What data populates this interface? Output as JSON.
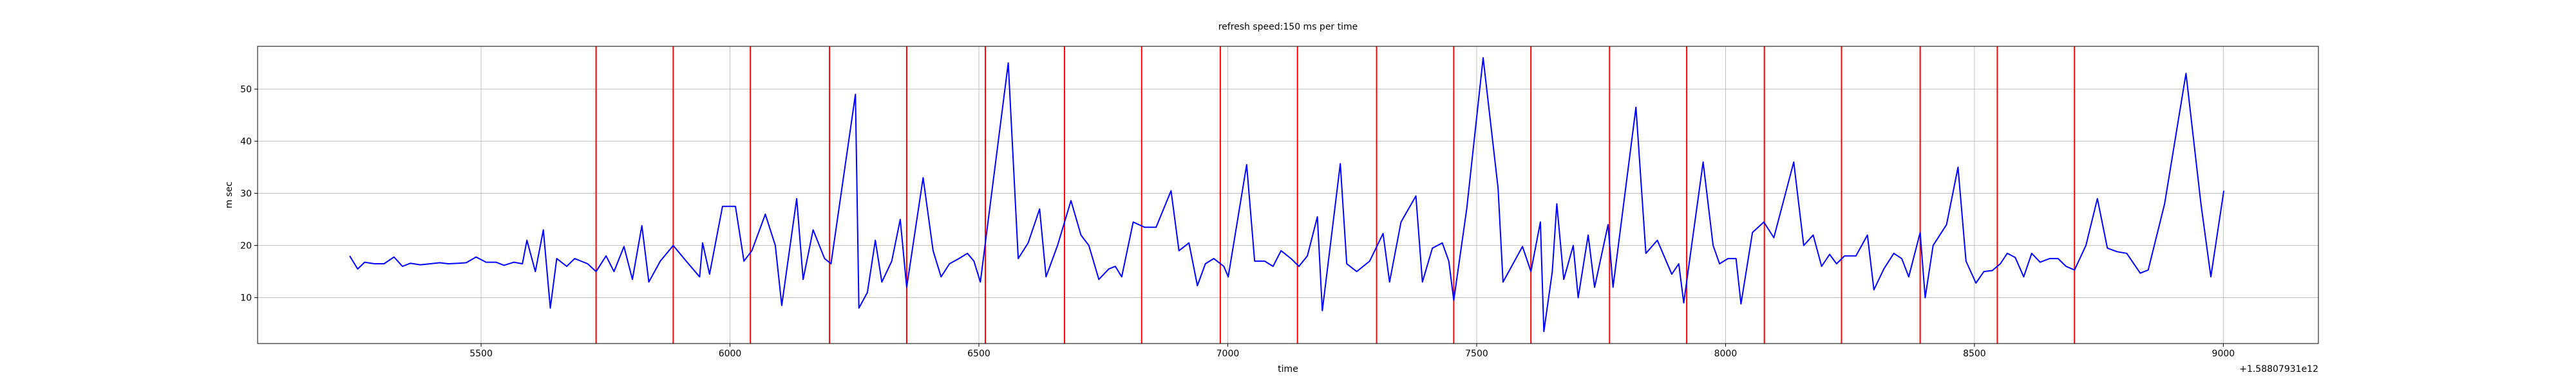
{
  "chart_data": {
    "type": "line",
    "title": "refresh speed:150 ms per time",
    "x_label": "time",
    "y_label": "m sec",
    "x_offset_label": "+1.58807931e12",
    "x": [
      5236,
      5252,
      5266,
      5286,
      5305,
      5325,
      5342,
      5358,
      5378,
      5398,
      5417,
      5434,
      5454,
      5470,
      5490,
      5510,
      5530,
      5546,
      5566,
      5583,
      5592,
      5609,
      5625,
      5639,
      5652,
      5672,
      5688,
      5714,
      5731,
      5751,
      5767,
      5787,
      5804,
      5823,
      5837,
      5860,
      5886,
      5912,
      5939,
      5945,
      5959,
      5985,
      6011,
      6028,
      6044,
      6071,
      6091,
      6104,
      6134,
      6147,
      6167,
      6190,
      6203,
      6252,
      6259,
      6276,
      6292,
      6305,
      6325,
      6342,
      6355,
      6388,
      6408,
      6424,
      6441,
      6460,
      6477,
      6490,
      6503,
      6559,
      6579,
      6599,
      6622,
      6635,
      6658,
      6685,
      6705,
      6721,
      6741,
      6761,
      6774,
      6787,
      6810,
      6833,
      6856,
      6886,
      6902,
      6922,
      6939,
      6955,
      6972,
      6992,
      7001,
      7038,
      7054,
      7074,
      7091,
      7107,
      7127,
      7143,
      7160,
      7180,
      7190,
      7206,
      7226,
      7239,
      7259,
      7285,
      7312,
      7325,
      7348,
      7378,
      7391,
      7411,
      7431,
      7444,
      7454,
      7480,
      7513,
      7543,
      7553,
      7576,
      7592,
      7609,
      7628,
      7635,
      7652,
      7661,
      7675,
      7694,
      7704,
      7724,
      7737,
      7764,
      7774,
      7820,
      7840,
      7863,
      7892,
      7906,
      7916,
      7955,
      7975,
      7988,
      8005,
      8021,
      8031,
      8054,
      8077,
      8097,
      8137,
      8157,
      8176,
      8193,
      8209,
      8223,
      8239,
      8262,
      8285,
      8298,
      8318,
      8338,
      8354,
      8368,
      8391,
      8401,
      8417,
      8444,
      8467,
      8483,
      8503,
      8519,
      8536,
      8552,
      8566,
      8582,
      8599,
      8615,
      8632,
      8651,
      8668,
      8684,
      8701,
      8724,
      8747,
      8767,
      8787,
      8806,
      8833,
      8849,
      8882,
      8925,
      8955,
      8975,
      9001
    ],
    "series": [
      {
        "color": "#0000ff",
        "values": [
          18,
          15.5,
          16.8,
          16.5,
          16.5,
          17.8,
          16,
          16.6,
          16.3,
          16.5,
          16.7,
          16.5,
          16.6,
          16.7,
          17.8,
          16.8,
          16.8,
          16.2,
          16.8,
          16.5,
          21,
          15,
          23,
          8,
          17.5,
          16,
          17.5,
          16.5,
          15,
          18,
          15,
          19.8,
          13.5,
          23.8,
          13,
          17,
          20,
          17,
          14,
          20.5,
          14.5,
          27.5,
          27.5,
          17,
          19,
          26,
          20,
          8.5,
          29,
          13.5,
          23,
          17.5,
          16.5,
          49,
          8,
          11,
          21,
          13,
          17,
          25,
          12,
          33,
          19,
          14,
          16.5,
          17.5,
          18.5,
          17,
          13,
          55,
          17.5,
          20.5,
          27,
          14,
          20,
          28.6,
          22,
          20,
          13.5,
          15.5,
          16,
          14,
          24.5,
          23.5,
          23.5,
          30.5,
          19,
          20.5,
          12.3,
          16.5,
          17.5,
          16,
          14,
          35.5,
          17,
          17,
          16,
          19,
          17.5,
          16,
          18,
          25.5,
          7.5,
          20,
          35.7,
          16.5,
          15,
          17,
          22.3,
          13,
          24.5,
          29.5,
          13,
          19.5,
          20.5,
          17,
          9.5,
          27,
          56,
          31,
          13,
          17,
          19.8,
          15,
          24.5,
          3.5,
          15,
          28,
          13.5,
          20,
          10,
          22,
          12,
          24,
          12,
          46.5,
          18.5,
          21,
          14.5,
          16.5,
          9,
          36,
          20,
          16.5,
          17.5,
          17.5,
          8.8,
          22.5,
          24.5,
          21.5,
          36,
          20,
          22,
          16,
          18.3,
          16.5,
          18,
          18,
          22,
          11.5,
          15.5,
          18.5,
          17.5,
          14,
          22.5,
          10,
          20,
          24,
          35,
          17,
          12.8,
          15,
          15.2,
          16.5,
          18.5,
          17.7,
          14,
          18.5,
          16.8,
          17.5,
          17.5,
          16,
          15.3,
          20,
          29,
          19.5,
          18.8,
          18.5,
          14.7,
          15.3,
          28,
          53,
          28,
          14,
          30.5
        ]
      }
    ],
    "vlines": {
      "color": "#ff0000",
      "x": [
        5731,
        5886,
        6041,
        6200,
        6355,
        6513,
        6672,
        6827,
        6985,
        7140,
        7299,
        7454,
        7609,
        7767,
        7922,
        8078,
        8233,
        8391,
        8546,
        8701
      ]
    },
    "xlim": [
      5051,
      9191
    ],
    "ylim": [
      1.2,
      58.2
    ],
    "xticks": [
      5500,
      6000,
      6500,
      7000,
      7500,
      8000,
      8500,
      9000
    ],
    "yticks": [
      10,
      20,
      30,
      40,
      50
    ],
    "grid": true
  }
}
